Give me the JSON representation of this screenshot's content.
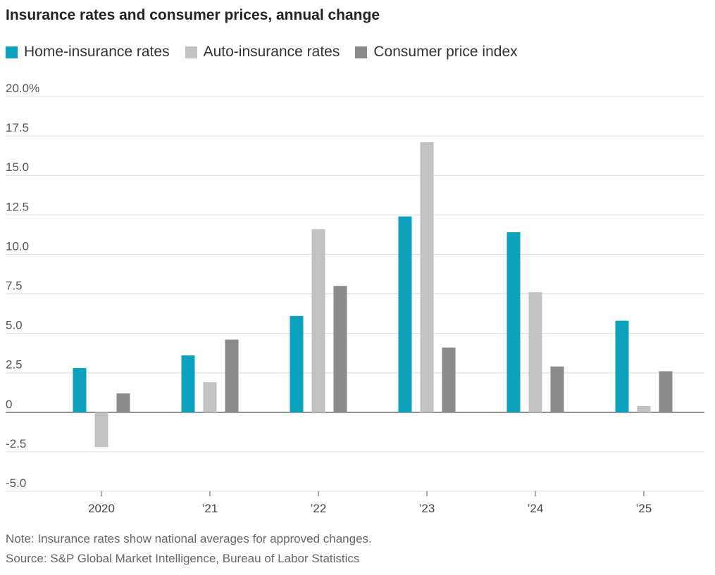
{
  "chart_data": {
    "type": "bar",
    "title": "Insurance rates and consumer prices, annual change",
    "categories": [
      "2020",
      "’21",
      "’22",
      "’23",
      "’24",
      "’25"
    ],
    "series": [
      {
        "name": "Home-insurance rates",
        "color": "#0aa2bd",
        "values": [
          2.8,
          3.6,
          6.1,
          12.4,
          11.4,
          5.8
        ]
      },
      {
        "name": "Auto-insurance rates",
        "color": "#c2c2c2",
        "values": [
          -2.2,
          1.9,
          11.6,
          17.1,
          7.6,
          0.4
        ]
      },
      {
        "name": "Consumer price index",
        "color": "#8a8a8a",
        "values": [
          1.2,
          4.6,
          8.0,
          4.1,
          2.9,
          2.6
        ]
      }
    ],
    "ylim": [
      -5,
      20
    ],
    "yticks": [
      20,
      17.5,
      15,
      12.5,
      10,
      7.5,
      5,
      2.5,
      0,
      -2.5,
      -5
    ],
    "ytick_labels": [
      "20.0%",
      "17.5",
      "15.0",
      "12.5",
      "10.0",
      "7.5",
      "5.0",
      "2.5",
      "0",
      "-2.5",
      "-5.0"
    ],
    "grid": true,
    "legend": "top-left",
    "note": "Note: Insurance rates show national averages for approved changes.",
    "source": "Source: S&P Global Market Intelligence, Bureau of Labor Statistics"
  }
}
